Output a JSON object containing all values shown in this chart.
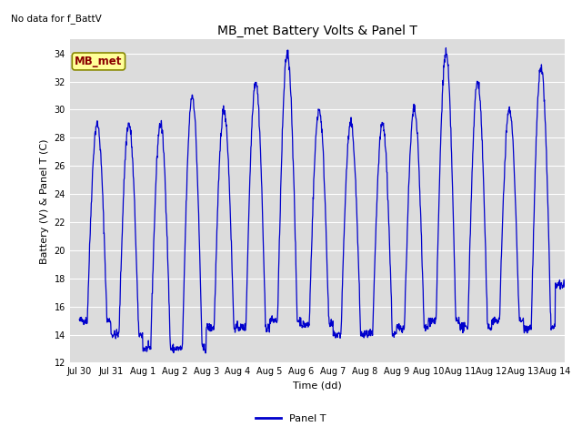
{
  "title": "MB_met Battery Volts & Panel T",
  "no_data_text": "No data for f_BattV",
  "ylabel": "Battery (V) & Panel T (C)",
  "xlabel": "Time (dd)",
  "ylim": [
    12,
    35
  ],
  "line_color": "#0000cc",
  "legend_label": "Panel T",
  "mb_met_label": "MB_met",
  "x_tick_labels": [
    "Jul 30",
    "Jul 31",
    "Aug 1",
    "Aug 2",
    "Aug 3",
    "Aug 4",
    "Aug 5",
    "Aug 6",
    "Aug 7",
    "Aug 8",
    "Aug 9",
    "Aug 10",
    "Aug 11",
    "Aug 12",
    "Aug 13",
    "Aug 14"
  ],
  "yticks": [
    12,
    14,
    16,
    18,
    20,
    22,
    24,
    26,
    28,
    30,
    32,
    34
  ],
  "peak_vals": [
    29,
    29,
    29,
    31,
    30,
    32,
    34,
    30,
    29,
    29,
    30,
    34,
    32,
    30,
    33,
    18
  ],
  "trough_vals": [
    15,
    14,
    13,
    13,
    14.5,
    14.5,
    15,
    14.7,
    14,
    14,
    14.5,
    15,
    14.5,
    15,
    14.5,
    17.5
  ],
  "title_fontsize": 10,
  "axis_fontsize": 8,
  "tick_fontsize": 7,
  "legend_fontsize": 8,
  "nodata_fontsize": 7.5,
  "mb_met_fontsize": 8.5
}
